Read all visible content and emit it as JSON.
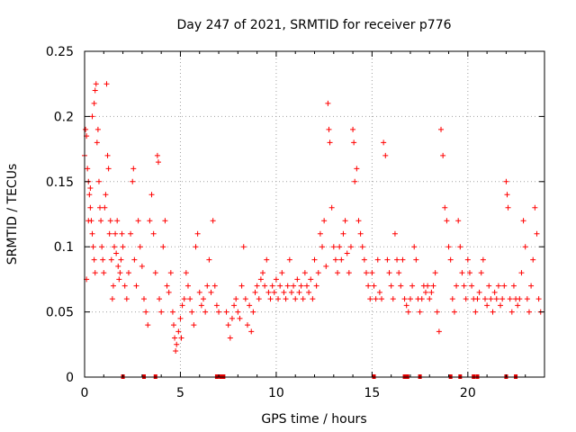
{
  "chart_data": {
    "type": "scatter",
    "title": "Day 247 of 2021, SRMTID for receiver p776",
    "xlabel": "GPS time / hours",
    "ylabel": "SRMTID / TECUs",
    "xlim": [
      0,
      24
    ],
    "ylim": [
      0,
      0.25
    ],
    "x_ticks": [
      0,
      5,
      10,
      15,
      20
    ],
    "x_tick_labels": [
      "0",
      "5",
      "10",
      "15",
      "20"
    ],
    "y_ticks": [
      0,
      0.05,
      0.1,
      0.15,
      0.2,
      0.25
    ],
    "y_tick_labels": [
      "0",
      "0.05",
      "0.1",
      "0.15",
      "0.2",
      "0.25"
    ],
    "grid": true,
    "marker": "+",
    "marker_color": "#ff0000",
    "series": [
      {
        "name": "SRMTID",
        "points": [
          [
            0.0,
            0.17
          ],
          [
            0.05,
            0.19
          ],
          [
            0.1,
            0.185
          ],
          [
            0.15,
            0.16
          ],
          [
            0.2,
            0.15
          ],
          [
            0.25,
            0.14
          ],
          [
            0.3,
            0.13
          ],
          [
            0.35,
            0.12
          ],
          [
            0.4,
            0.11
          ],
          [
            0.45,
            0.1
          ],
          [
            0.5,
            0.09
          ],
          [
            0.55,
            0.08
          ],
          [
            0.1,
            0.075
          ],
          [
            0.2,
            0.12
          ],
          [
            0.3,
            0.145
          ],
          [
            0.4,
            0.2
          ],
          [
            0.5,
            0.21
          ],
          [
            0.55,
            0.22
          ],
          [
            0.6,
            0.225
          ],
          [
            0.65,
            0.18
          ],
          [
            0.7,
            0.19
          ],
          [
            0.75,
            0.15
          ],
          [
            0.8,
            0.13
          ],
          [
            0.85,
            0.12
          ],
          [
            0.9,
            0.1
          ],
          [
            0.95,
            0.09
          ],
          [
            1.0,
            0.08
          ],
          [
            1.05,
            0.13
          ],
          [
            1.1,
            0.14
          ],
          [
            1.15,
            0.225
          ],
          [
            1.2,
            0.17
          ],
          [
            1.25,
            0.16
          ],
          [
            1.3,
            0.11
          ],
          [
            1.35,
            0.12
          ],
          [
            1.4,
            0.09
          ],
          [
            1.45,
            0.06
          ],
          [
            1.5,
            0.07
          ],
          [
            1.55,
            0.1
          ],
          [
            1.6,
            0.11
          ],
          [
            1.65,
            0.095
          ],
          [
            1.7,
            0.12
          ],
          [
            1.75,
            0.085
          ],
          [
            1.8,
            0.075
          ],
          [
            1.85,
            0.08
          ],
          [
            1.9,
            0.09
          ],
          [
            1.95,
            0.11
          ],
          [
            2.0,
            0.1
          ],
          [
            2.1,
            0.07
          ],
          [
            2.2,
            0.06
          ],
          [
            2.3,
            0.08
          ],
          [
            2.4,
            0.11
          ],
          [
            2.5,
            0.15
          ],
          [
            2.55,
            0.16
          ],
          [
            2.6,
            0.09
          ],
          [
            2.7,
            0.07
          ],
          [
            2.8,
            0.12
          ],
          [
            2.9,
            0.1
          ],
          [
            3.0,
            0.085
          ],
          [
            3.1,
            0.06
          ],
          [
            3.2,
            0.05
          ],
          [
            3.3,
            0.04
          ],
          [
            3.4,
            0.12
          ],
          [
            3.5,
            0.14
          ],
          [
            3.6,
            0.11
          ],
          [
            3.7,
            0.08
          ],
          [
            3.8,
            0.17
          ],
          [
            3.85,
            0.165
          ],
          [
            3.9,
            0.06
          ],
          [
            4.0,
            0.05
          ],
          [
            4.1,
            0.1
          ],
          [
            4.2,
            0.12
          ],
          [
            4.3,
            0.07
          ],
          [
            4.4,
            0.065
          ],
          [
            4.5,
            0.08
          ],
          [
            4.6,
            0.05
          ],
          [
            4.65,
            0.04
          ],
          [
            4.7,
            0.03
          ],
          [
            4.75,
            0.02
          ],
          [
            4.8,
            0.025
          ],
          [
            4.9,
            0.035
          ],
          [
            5.0,
            0.045
          ],
          [
            5.05,
            0.03
          ],
          [
            5.1,
            0.055
          ],
          [
            5.2,
            0.06
          ],
          [
            5.3,
            0.08
          ],
          [
            5.4,
            0.07
          ],
          [
            5.5,
            0.06
          ],
          [
            5.6,
            0.05
          ],
          [
            5.7,
            0.04
          ],
          [
            5.8,
            0.1
          ],
          [
            5.9,
            0.11
          ],
          [
            6.0,
            0.065
          ],
          [
            6.1,
            0.055
          ],
          [
            6.2,
            0.06
          ],
          [
            6.3,
            0.05
          ],
          [
            6.4,
            0.07
          ],
          [
            6.5,
            0.09
          ],
          [
            6.6,
            0.065
          ],
          [
            6.7,
            0.12
          ],
          [
            6.8,
            0.07
          ],
          [
            6.9,
            0.055
          ],
          [
            7.0,
            0.05
          ],
          [
            7.4,
            0.05
          ],
          [
            7.5,
            0.04
          ],
          [
            7.6,
            0.03
          ],
          [
            7.7,
            0.045
          ],
          [
            7.8,
            0.055
          ],
          [
            7.9,
            0.06
          ],
          [
            8.0,
            0.05
          ],
          [
            8.1,
            0.045
          ],
          [
            8.2,
            0.07
          ],
          [
            8.3,
            0.1
          ],
          [
            8.4,
            0.06
          ],
          [
            8.5,
            0.04
          ],
          [
            8.6,
            0.055
          ],
          [
            8.7,
            0.035
          ],
          [
            8.8,
            0.05
          ],
          [
            8.9,
            0.065
          ],
          [
            9.0,
            0.07
          ],
          [
            9.1,
            0.06
          ],
          [
            9.2,
            0.075
          ],
          [
            9.3,
            0.08
          ],
          [
            9.4,
            0.07
          ],
          [
            9.5,
            0.09
          ],
          [
            9.6,
            0.065
          ],
          [
            9.7,
            0.06
          ],
          [
            9.8,
            0.07
          ],
          [
            9.9,
            0.065
          ],
          [
            10.0,
            0.075
          ],
          [
            10.1,
            0.06
          ],
          [
            10.2,
            0.07
          ],
          [
            10.3,
            0.08
          ],
          [
            10.4,
            0.065
          ],
          [
            10.5,
            0.06
          ],
          [
            10.6,
            0.07
          ],
          [
            10.7,
            0.09
          ],
          [
            10.8,
            0.065
          ],
          [
            10.9,
            0.07
          ],
          [
            11.0,
            0.06
          ],
          [
            11.1,
            0.075
          ],
          [
            11.2,
            0.065
          ],
          [
            11.3,
            0.07
          ],
          [
            11.4,
            0.06
          ],
          [
            11.5,
            0.08
          ],
          [
            11.6,
            0.07
          ],
          [
            11.7,
            0.065
          ],
          [
            11.8,
            0.075
          ],
          [
            11.9,
            0.06
          ],
          [
            12.0,
            0.09
          ],
          [
            12.1,
            0.07
          ],
          [
            12.2,
            0.08
          ],
          [
            12.3,
            0.11
          ],
          [
            12.4,
            0.1
          ],
          [
            12.5,
            0.12
          ],
          [
            12.6,
            0.085
          ],
          [
            12.7,
            0.21
          ],
          [
            12.75,
            0.19
          ],
          [
            12.8,
            0.18
          ],
          [
            12.9,
            0.13
          ],
          [
            13.0,
            0.1
          ],
          [
            13.1,
            0.09
          ],
          [
            13.2,
            0.08
          ],
          [
            13.3,
            0.1
          ],
          [
            13.4,
            0.09
          ],
          [
            13.5,
            0.11
          ],
          [
            13.6,
            0.12
          ],
          [
            13.7,
            0.095
          ],
          [
            13.8,
            0.08
          ],
          [
            13.9,
            0.1
          ],
          [
            14.0,
            0.19
          ],
          [
            14.05,
            0.18
          ],
          [
            14.1,
            0.15
          ],
          [
            14.2,
            0.16
          ],
          [
            14.3,
            0.12
          ],
          [
            14.4,
            0.11
          ],
          [
            14.5,
            0.1
          ],
          [
            14.6,
            0.09
          ],
          [
            14.7,
            0.08
          ],
          [
            14.8,
            0.07
          ],
          [
            14.9,
            0.06
          ],
          [
            15.0,
            0.08
          ],
          [
            15.1,
            0.07
          ],
          [
            15.2,
            0.06
          ],
          [
            15.3,
            0.09
          ],
          [
            15.4,
            0.065
          ],
          [
            15.5,
            0.06
          ],
          [
            15.6,
            0.18
          ],
          [
            15.7,
            0.17
          ],
          [
            15.8,
            0.09
          ],
          [
            15.9,
            0.08
          ],
          [
            16.0,
            0.07
          ],
          [
            16.1,
            0.06
          ],
          [
            16.2,
            0.11
          ],
          [
            16.3,
            0.09
          ],
          [
            16.4,
            0.08
          ],
          [
            16.5,
            0.07
          ],
          [
            16.6,
            0.09
          ],
          [
            16.7,
            0.06
          ],
          [
            16.8,
            0.055
          ],
          [
            16.9,
            0.05
          ],
          [
            17.0,
            0.06
          ],
          [
            17.1,
            0.07
          ],
          [
            17.2,
            0.1
          ],
          [
            17.3,
            0.09
          ],
          [
            17.4,
            0.06
          ],
          [
            17.5,
            0.05
          ],
          [
            17.6,
            0.06
          ],
          [
            17.7,
            0.07
          ],
          [
            17.8,
            0.065
          ],
          [
            17.9,
            0.07
          ],
          [
            18.0,
            0.06
          ],
          [
            18.1,
            0.065
          ],
          [
            18.2,
            0.07
          ],
          [
            18.3,
            0.08
          ],
          [
            18.4,
            0.05
          ],
          [
            18.5,
            0.035
          ],
          [
            18.6,
            0.19
          ],
          [
            18.7,
            0.17
          ],
          [
            18.8,
            0.13
          ],
          [
            18.9,
            0.12
          ],
          [
            19.0,
            0.1
          ],
          [
            19.1,
            0.09
          ],
          [
            19.2,
            0.06
          ],
          [
            19.3,
            0.05
          ],
          [
            19.4,
            0.07
          ],
          [
            19.5,
            0.12
          ],
          [
            19.6,
            0.1
          ],
          [
            19.7,
            0.08
          ],
          [
            19.8,
            0.07
          ],
          [
            19.9,
            0.06
          ],
          [
            20.0,
            0.09
          ],
          [
            20.1,
            0.08
          ],
          [
            20.2,
            0.07
          ],
          [
            20.3,
            0.06
          ],
          [
            20.4,
            0.05
          ],
          [
            20.5,
            0.06
          ],
          [
            20.6,
            0.065
          ],
          [
            20.7,
            0.08
          ],
          [
            20.8,
            0.09
          ],
          [
            20.9,
            0.06
          ],
          [
            21.0,
            0.055
          ],
          [
            21.1,
            0.07
          ],
          [
            21.2,
            0.06
          ],
          [
            21.3,
            0.05
          ],
          [
            21.4,
            0.065
          ],
          [
            21.5,
            0.06
          ],
          [
            21.6,
            0.07
          ],
          [
            21.7,
            0.055
          ],
          [
            21.8,
            0.06
          ],
          [
            21.9,
            0.07
          ],
          [
            22.0,
            0.15
          ],
          [
            22.05,
            0.14
          ],
          [
            22.1,
            0.13
          ],
          [
            22.2,
            0.06
          ],
          [
            22.3,
            0.05
          ],
          [
            22.4,
            0.07
          ],
          [
            22.5,
            0.06
          ],
          [
            22.6,
            0.055
          ],
          [
            22.7,
            0.06
          ],
          [
            22.8,
            0.08
          ],
          [
            22.9,
            0.12
          ],
          [
            23.0,
            0.1
          ],
          [
            23.1,
            0.06
          ],
          [
            23.2,
            0.05
          ],
          [
            23.3,
            0.07
          ],
          [
            23.4,
            0.09
          ],
          [
            23.5,
            0.13
          ],
          [
            23.6,
            0.11
          ],
          [
            23.7,
            0.06
          ],
          [
            23.8,
            0.05
          ]
        ]
      }
    ],
    "gap_markers_x": [
      2.0,
      3.1,
      3.7,
      6.9,
      7.1,
      7.25,
      15.1,
      16.7,
      16.85,
      17.5,
      19.1,
      19.6,
      20.3,
      20.5,
      22.0,
      22.5
    ]
  }
}
